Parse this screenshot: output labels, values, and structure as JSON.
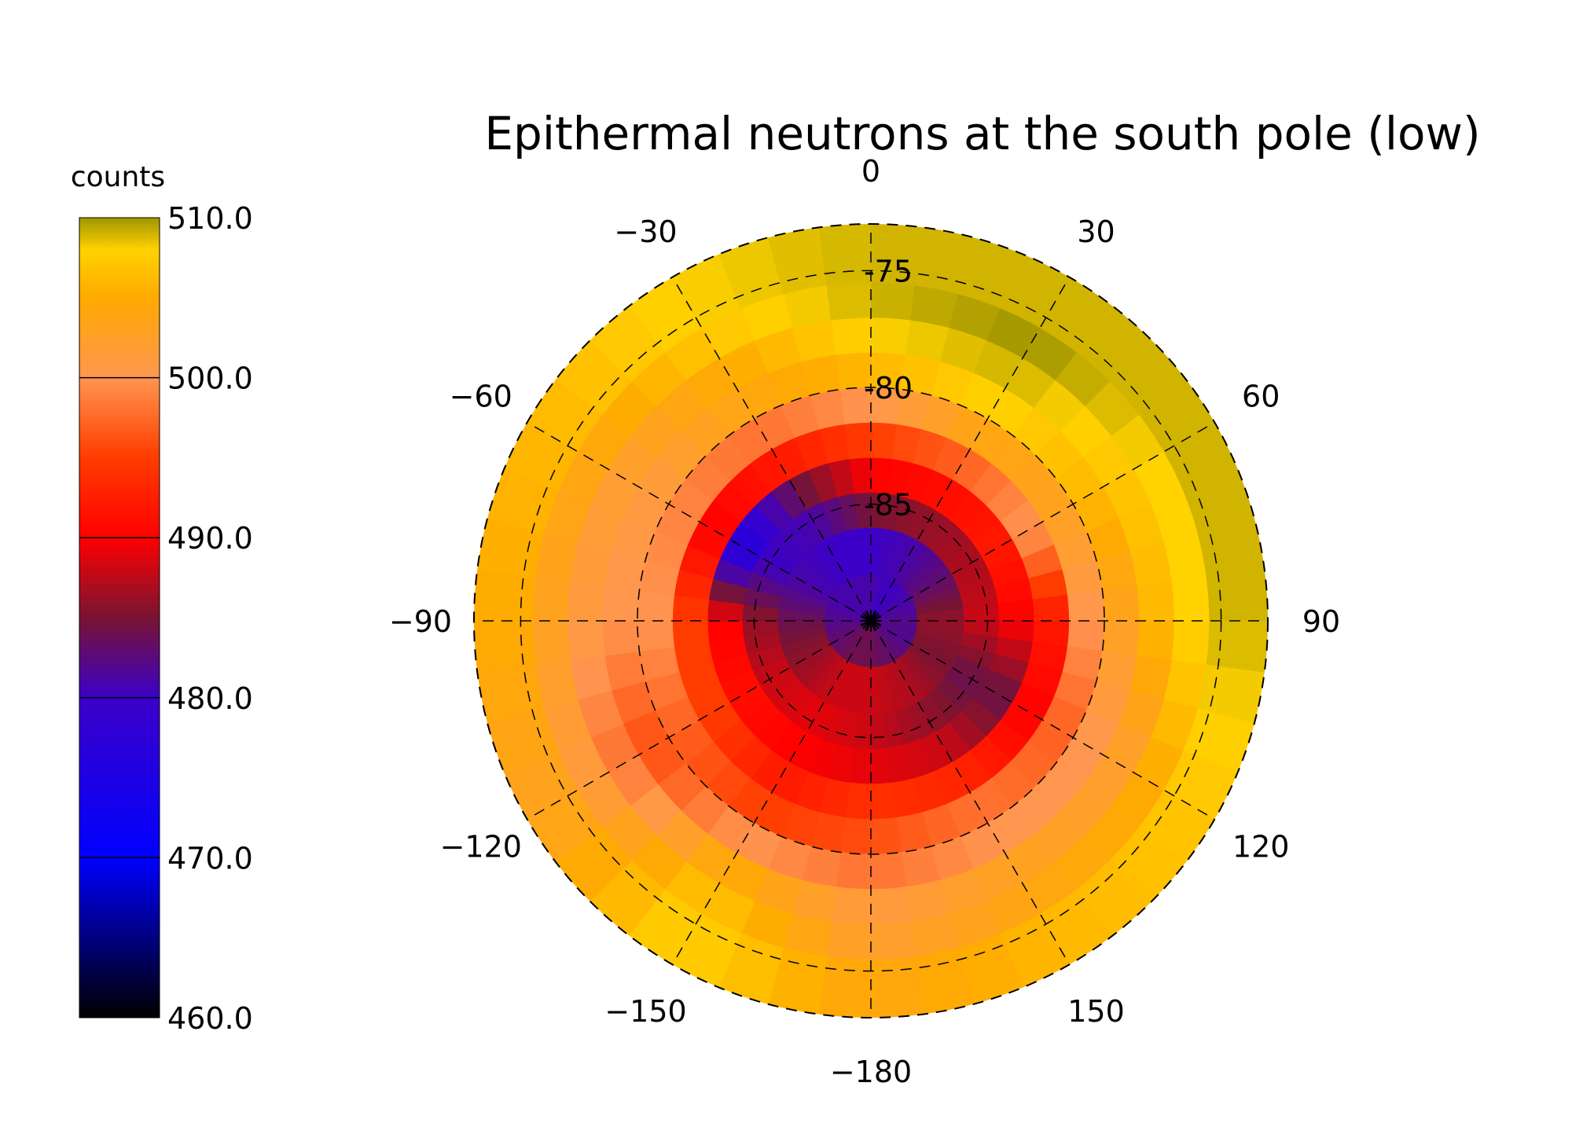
{
  "chart_data": {
    "type": "heatmap",
    "projection": "polar-stereographic",
    "title": "Epithermal neutrons at the south pole (low)",
    "colorbar": {
      "label": "counts",
      "min": 460.0,
      "max": 510.0,
      "ticks": [
        "510.0",
        "500.0",
        "490.0",
        "480.0",
        "470.0",
        "460.0"
      ],
      "tick_values": [
        510,
        500,
        490,
        480,
        470,
        460
      ],
      "stops": [
        {
          "value": 460,
          "color": "#000000"
        },
        {
          "value": 470,
          "color": "#0000ff"
        },
        {
          "value": 480,
          "color": "#3c00c8"
        },
        {
          "value": 485,
          "color": "#781432"
        },
        {
          "value": 490,
          "color": "#ff0000"
        },
        {
          "value": 495,
          "color": "#ff3c00"
        },
        {
          "value": 500,
          "color": "#ff9650"
        },
        {
          "value": 505,
          "color": "#ffaa00"
        },
        {
          "value": 508,
          "color": "#ffd200"
        },
        {
          "value": 510,
          "color": "#a09600"
        }
      ]
    },
    "latitude_labels": [
      "-75",
      "-80",
      "-85"
    ],
    "latitude_values": [
      -75,
      -80,
      -85
    ],
    "latitude_range": [
      -90,
      -73
    ],
    "longitude_labels": [
      {
        "value": 0,
        "text": "0"
      },
      {
        "value": 30,
        "text": "30"
      },
      {
        "value": 60,
        "text": "60"
      },
      {
        "value": 90,
        "text": "90"
      },
      {
        "value": 120,
        "text": "120"
      },
      {
        "value": 150,
        "text": "150"
      },
      {
        "value": 180,
        "text": "−180"
      },
      {
        "value": -150,
        "text": "−150"
      },
      {
        "value": -120,
        "text": "−120"
      },
      {
        "value": -90,
        "text": "−90"
      },
      {
        "value": -60,
        "text": "−60"
      },
      {
        "value": -30,
        "text": "−30"
      }
    ],
    "grid": true,
    "grid_style": "dashed",
    "field": {
      "description_units": "counts",
      "rings": [
        {
          "lat_from": -90,
          "lat_to": -88,
          "values_by_30deg_from_0": [
            481,
            480,
            481,
            482,
            482,
            483,
            484,
            484,
            483,
            482,
            481,
            481
          ]
        },
        {
          "lat_from": -88,
          "lat_to": -86,
          "values_by_30deg_from_0": [
            480,
            481,
            483,
            486,
            485,
            487,
            488,
            488,
            486,
            484,
            481,
            480
          ]
        },
        {
          "lat_from": -86,
          "lat_to": -84.5,
          "values_by_30deg_from_0": [
            485,
            486,
            487,
            488,
            484,
            486,
            488,
            489,
            488,
            486,
            480,
            481
          ]
        },
        {
          "lat_from": -84.5,
          "lat_to": -83,
          "values_by_30deg_from_0": [
            490,
            491,
            492,
            490,
            484,
            488,
            489,
            490,
            491,
            490,
            476,
            484
          ]
        },
        {
          "lat_from": -83,
          "lat_to": -81.5,
          "values_by_30deg_from_0": [
            495,
            497,
            500,
            492,
            490,
            493,
            494,
            492,
            495,
            495,
            490,
            492
          ]
        },
        {
          "lat_from": -81.5,
          "lat_to": -80,
          "values_by_30deg_from_0": [
            500,
            504,
            503,
            500,
            497,
            498,
            496,
            495,
            497,
            500,
            499,
            498
          ]
        },
        {
          "lat_from": -80,
          "lat_to": -78.5,
          "values_by_30deg_from_0": [
            506,
            508,
            506,
            503,
            500,
            500,
            498,
            500,
            496,
            500,
            501,
            504
          ]
        },
        {
          "lat_from": -78.5,
          "lat_to": -77,
          "values_by_30deg_from_0": [
            508,
            509,
            507,
            506,
            502,
            503,
            501,
            505,
            498,
            501,
            502,
            505
          ]
        },
        {
          "lat_from": -77,
          "lat_to": -75.5,
          "values_by_30deg_from_0": [
            509,
            510,
            508,
            508,
            505,
            504,
            502,
            507,
            501,
            503,
            504,
            507
          ]
        },
        {
          "lat_from": -75.5,
          "lat_to": -74,
          "values_by_30deg_from_0": [
            509,
            509,
            509,
            509,
            507,
            506,
            504,
            508,
            503,
            505,
            506,
            508
          ]
        }
      ]
    }
  }
}
